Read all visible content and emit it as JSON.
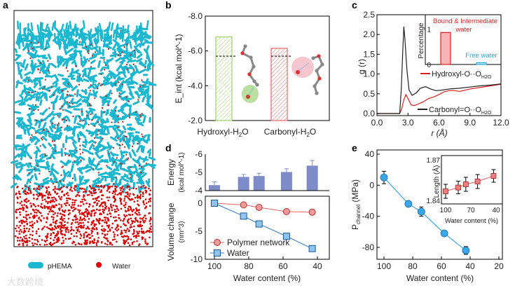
{
  "watermark": "大数跨境",
  "chart_data": [
    {
      "panel": "a",
      "type": "other",
      "legend": [
        {
          "label": "pHEMA",
          "color": "#1bb7d0"
        },
        {
          "label": "Water",
          "color": "#e00000"
        }
      ]
    },
    {
      "panel": "b",
      "type": "bar",
      "ylabel": "E_int (kcal mol^-1)",
      "ylim": [
        -2.0,
        -8.0
      ],
      "yticks": [
        "-8.0",
        "-6.0",
        "-4.0",
        "-2.0"
      ],
      "categories": [
        "Hydroxyl-H2O",
        "Carbonyl-H2O"
      ],
      "cat_main": [
        "Hydroxyl-H",
        "Carbonyl-H"
      ],
      "cat_sub": "2",
      "cat_tail": "O",
      "values": [
        -6.8,
        -6.15
      ],
      "reference_dashed": [
        -5.7,
        -5.7
      ],
      "colors": [
        "#8cc84b",
        "#e84b4b"
      ]
    },
    {
      "panel": "c",
      "type": "line",
      "xlabel": "r (Å)",
      "ylabel": "g (r)",
      "xlim": [
        0,
        12
      ],
      "ylim": [
        0,
        2.5
      ],
      "xticks": [
        "0.0",
        "3.0",
        "6.0",
        "9.0",
        "12.0"
      ],
      "yticks": [
        "0.0",
        "0.5",
        "1.0",
        "1.5",
        "2.0",
        "2.5"
      ],
      "series": [
        {
          "name": "Hydroxyl-O··O_H2O",
          "main": "Hydroxyl-O··O",
          "sub": "H2O",
          "color": "#e02020",
          "x": [
            0,
            2.2,
            2.4,
            2.6,
            2.8,
            3.0,
            3.3,
            3.6,
            4.0,
            4.5,
            5.0,
            5.5,
            6.0,
            6.5,
            7.0,
            7.5,
            8.0,
            9.0,
            10.0,
            11.0,
            12.0
          ],
          "y": [
            0,
            0,
            0.12,
            0.35,
            0.48,
            0.38,
            0.22,
            0.2,
            0.24,
            0.3,
            0.38,
            0.42,
            0.48,
            0.55,
            0.58,
            0.58,
            0.56,
            0.62,
            0.66,
            0.7,
            0.74
          ]
        },
        {
          "name": "Carbonyl=O··O_H2O",
          "main": "Carbonyl=O··O",
          "sub": "H2O",
          "color": "#222222",
          "x": [
            0,
            2.2,
            2.35,
            2.5,
            2.6,
            2.7,
            2.9,
            3.1,
            3.4,
            3.8,
            4.2,
            4.7,
            5.2,
            5.7,
            6.2,
            7.0,
            8.0,
            9.0,
            10.0,
            11.0,
            12.0
          ],
          "y": [
            0,
            0,
            0.6,
            1.6,
            2.2,
            1.9,
            1.1,
            0.6,
            0.46,
            0.52,
            0.64,
            0.68,
            0.62,
            0.58,
            0.59,
            0.62,
            0.64,
            0.67,
            0.7,
            0.72,
            0.75
          ]
        }
      ],
      "inset": {
        "ylabel": "Percentage",
        "yticks": [
          "0",
          "1"
        ],
        "ylim": [
          0,
          1.4
        ],
        "bars": [
          {
            "label": "Bound & Intermediate water",
            "line1": "Bound & Intermediate",
            "line2": "water",
            "value": 0.9,
            "color": "#e02020",
            "fill": "#f8b4b4"
          },
          {
            "label": "Free water",
            "line1": "Free water",
            "value": 0.05,
            "color": "#2aa8e0",
            "fill": "#bfe6f7"
          }
        ]
      }
    },
    {
      "panel": "d",
      "type": "bar+line",
      "xlabel": "Water content (%)",
      "xlim": [
        105,
        35
      ],
      "xticks": [
        "100",
        "80",
        "60",
        "40"
      ],
      "top": {
        "ylabel1": "Energy",
        "ylabel2": "(kcal mol^-1)",
        "ylim": [
          -4,
          -6
        ],
        "yticks": [
          "-6",
          "-5",
          "-4"
        ],
        "x": [
          100,
          83,
          74,
          58,
          43
        ],
        "values": [
          -4.3,
          -4.75,
          -4.8,
          -5.02,
          -5.37
        ],
        "errors": [
          0.18,
          0.14,
          0.15,
          0.18,
          0.28
        ],
        "color": "#7d8bc8"
      },
      "bottom": {
        "ylabel1": "Volume change",
        "ylabel2": "(nm^3)",
        "ylim": [
          -10,
          0.5
        ],
        "yticks": [
          "0",
          "-5",
          "-10"
        ],
        "series": [
          {
            "name": "Polymer network",
            "marker": "circle",
            "color": "#e86060",
            "fill": "#f49a9a",
            "x": [
              100,
              83,
              74,
              58,
              43
            ],
            "y": [
              0,
              -0.3,
              -0.75,
              -1.5,
              -1.6
            ]
          },
          {
            "name": "Water",
            "marker": "square",
            "color": "#2a78c8",
            "fill": "#8ec4ef",
            "x": [
              100,
              83,
              74,
              58,
              43
            ],
            "y": [
              0,
              -2.3,
              -3.7,
              -5.9,
              -8.1
            ]
          }
        ]
      }
    },
    {
      "panel": "e",
      "type": "scatter+line",
      "xlabel": "Water content (%)",
      "ylabel": "P_channel (MPa)",
      "ylabel_main": "P",
      "ylabel_sub": "channel",
      "ylabel_tail": " (MPa)",
      "xlim": [
        105,
        17
      ],
      "ylim": [
        -95,
        40
      ],
      "xticks": [
        "100",
        "80",
        "60",
        "40",
        "20"
      ],
      "yticks": [
        "40",
        "0",
        "-40",
        "-80"
      ],
      "x": [
        100,
        83,
        74,
        58,
        43
      ],
      "y": [
        10,
        -24,
        -34,
        -62,
        -84
      ],
      "errors": [
        8,
        2,
        6,
        2,
        5
      ],
      "color": "#3aa8e8",
      "inset": {
        "xlabel": "Water content (%)",
        "ylabel": "Length (Å)",
        "xlim": [
          102,
          38
        ],
        "ylim": [
          1.84,
          1.87
        ],
        "xticks": [
          "100",
          "70",
          "40"
        ],
        "yticks": [
          "1.87",
          "1.84"
        ],
        "x": [
          100,
          85,
          76,
          62,
          43
        ],
        "y": [
          1.8475,
          1.8502,
          1.8525,
          1.8545,
          1.8585
        ],
        "errors": [
          0.005,
          0.0045,
          0.005,
          0.005,
          0.0045
        ],
        "color": "#e06060"
      }
    }
  ]
}
